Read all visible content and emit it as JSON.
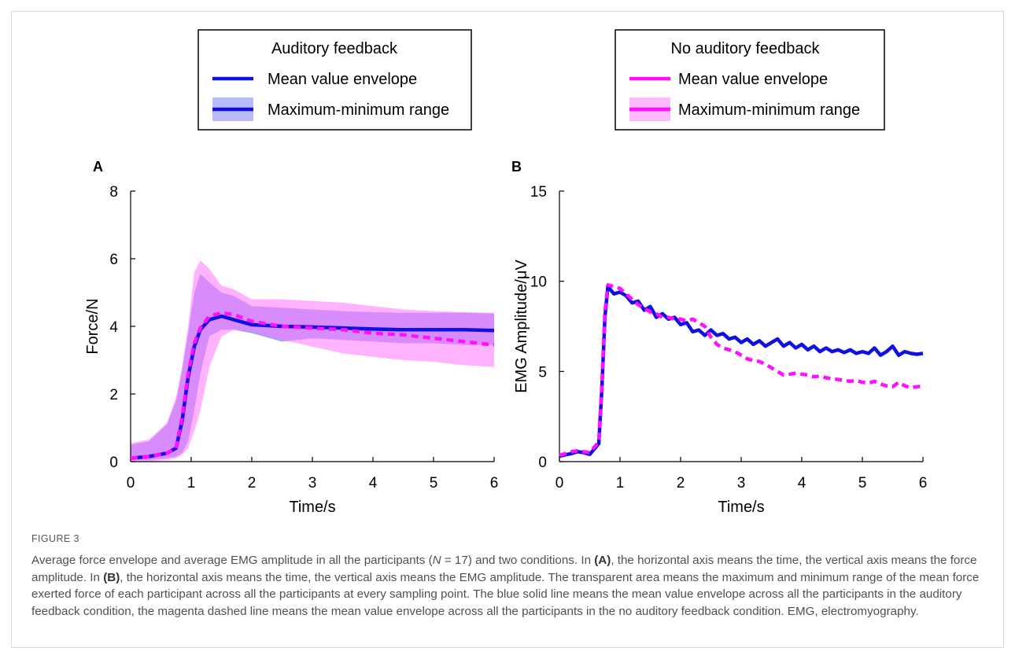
{
  "legend": {
    "left": {
      "title": "Auditory feedback",
      "items": [
        "Mean value envelope",
        "Maximum-minimum range"
      ]
    },
    "right": {
      "title": "No auditory feedback",
      "items": [
        "Mean value envelope",
        "Maximum-minimum range"
      ]
    }
  },
  "colors": {
    "auditory": "#1010e0",
    "auditory_band": "#7f7ff2",
    "no_auditory": "#ff10ff",
    "no_auditory_band": "#ff80ff"
  },
  "chart_data": [
    {
      "type": "line",
      "panel": "A",
      "xlabel": "Time/s",
      "ylabel": "Force/N",
      "xlim": [
        0,
        6
      ],
      "ylim": [
        0,
        8
      ],
      "xticks": [
        "0",
        "1",
        "2",
        "3",
        "4",
        "5",
        "6"
      ],
      "yticks": [
        "0",
        "2",
        "4",
        "6",
        "8"
      ],
      "series": [
        {
          "name": "Auditory feedback",
          "style": "solid",
          "x": [
            0,
            0.3,
            0.6,
            0.75,
            0.85,
            0.95,
            1.05,
            1.15,
            1.3,
            1.5,
            1.7,
            2.0,
            2.5,
            3.0,
            3.5,
            4.0,
            4.5,
            5.0,
            5.5,
            6.0
          ],
          "y": [
            0.1,
            0.15,
            0.25,
            0.4,
            1.2,
            2.5,
            3.4,
            3.9,
            4.2,
            4.3,
            4.2,
            4.05,
            4.0,
            3.98,
            3.95,
            3.92,
            3.9,
            3.9,
            3.9,
            3.88
          ],
          "band_upper": [
            0.5,
            0.6,
            1.1,
            1.8,
            2.7,
            3.8,
            5.0,
            5.55,
            5.3,
            5.0,
            4.9,
            4.6,
            4.55,
            4.5,
            4.45,
            4.42,
            4.4,
            4.4,
            4.4,
            4.38
          ],
          "band_lower": [
            0.05,
            0.05,
            0.1,
            0.15,
            0.25,
            0.6,
            1.5,
            2.6,
            3.7,
            3.9,
            3.9,
            3.8,
            3.55,
            3.65,
            3.6,
            3.55,
            3.5,
            3.5,
            3.45,
            3.45
          ]
        },
        {
          "name": "No auditory feedback",
          "style": "dashed",
          "x": [
            0,
            0.3,
            0.6,
            0.75,
            0.85,
            0.95,
            1.05,
            1.15,
            1.3,
            1.5,
            1.7,
            2.0,
            2.5,
            3.0,
            3.5,
            4.0,
            4.5,
            5.0,
            5.5,
            6.0
          ],
          "y": [
            0.1,
            0.15,
            0.25,
            0.4,
            1.3,
            2.6,
            3.5,
            3.95,
            4.3,
            4.4,
            4.35,
            4.15,
            4.0,
            3.95,
            3.9,
            3.8,
            3.75,
            3.65,
            3.55,
            3.45
          ],
          "band_upper": [
            0.55,
            0.65,
            1.15,
            1.9,
            2.8,
            4.0,
            5.6,
            5.95,
            5.7,
            5.2,
            5.1,
            4.8,
            4.8,
            4.75,
            4.7,
            4.6,
            4.5,
            4.45,
            4.42,
            4.4
          ],
          "band_lower": [
            0.0,
            0.0,
            0.05,
            0.1,
            0.2,
            0.4,
            0.9,
            1.5,
            2.8,
            3.7,
            3.9,
            3.85,
            3.6,
            3.4,
            3.2,
            3.1,
            3.0,
            2.95,
            2.85,
            2.8
          ]
        }
      ]
    },
    {
      "type": "line",
      "panel": "B",
      "xlabel": "Time/s",
      "ylabel": "EMG Amplitude/μV",
      "xlim": [
        0,
        6
      ],
      "ylim": [
        0,
        15
      ],
      "xticks": [
        "0",
        "1",
        "2",
        "3",
        "4",
        "5",
        "6"
      ],
      "yticks": [
        "0",
        "5",
        "10",
        "15"
      ],
      "series": [
        {
          "name": "Auditory feedback",
          "style": "solid",
          "x": [
            0,
            0.2,
            0.3,
            0.4,
            0.5,
            0.6,
            0.65,
            0.7,
            0.75,
            0.8,
            0.9,
            1.0,
            1.1,
            1.2,
            1.3,
            1.4,
            1.5,
            1.6,
            1.7,
            1.8,
            1.9,
            2.0,
            2.1,
            2.2,
            2.3,
            2.4,
            2.5,
            2.6,
            2.7,
            2.8,
            2.9,
            3.0,
            3.1,
            3.2,
            3.3,
            3.4,
            3.5,
            3.6,
            3.7,
            3.8,
            3.9,
            4.0,
            4.1,
            4.2,
            4.3,
            4.4,
            4.5,
            4.6,
            4.7,
            4.8,
            4.9,
            5.0,
            5.1,
            5.2,
            5.3,
            5.4,
            5.5,
            5.6,
            5.7,
            5.8,
            5.9,
            6.0
          ],
          "y": [
            0.3,
            0.45,
            0.55,
            0.5,
            0.4,
            0.8,
            1.0,
            4.0,
            8.0,
            9.7,
            9.3,
            9.4,
            9.2,
            8.8,
            8.9,
            8.4,
            8.6,
            8.0,
            8.2,
            7.9,
            8.0,
            7.6,
            7.7,
            7.2,
            7.3,
            7.0,
            7.3,
            7.0,
            7.1,
            6.8,
            6.9,
            6.6,
            6.8,
            6.5,
            6.7,
            6.4,
            6.6,
            6.8,
            6.4,
            6.6,
            6.3,
            6.5,
            6.2,
            6.4,
            6.1,
            6.3,
            6.1,
            6.2,
            6.05,
            6.2,
            6.0,
            6.1,
            6.0,
            6.3,
            5.9,
            6.1,
            6.4,
            5.9,
            6.1,
            6.0,
            5.95,
            6.0
          ]
        },
        {
          "name": "No auditory feedback",
          "style": "dashed",
          "x": [
            0,
            0.2,
            0.3,
            0.4,
            0.5,
            0.6,
            0.65,
            0.7,
            0.75,
            0.8,
            0.9,
            1.0,
            1.1,
            1.2,
            1.3,
            1.4,
            1.5,
            1.6,
            1.7,
            1.8,
            1.9,
            2.0,
            2.1,
            2.2,
            2.3,
            2.4,
            2.5,
            2.6,
            2.7,
            2.8,
            2.9,
            3.0,
            3.1,
            3.2,
            3.3,
            3.4,
            3.5,
            3.6,
            3.7,
            3.8,
            3.9,
            4.0,
            4.1,
            4.2,
            4.3,
            4.4,
            4.5,
            4.6,
            4.7,
            4.8,
            4.9,
            5.0,
            5.1,
            5.2,
            5.3,
            5.4,
            5.5,
            5.6,
            5.7,
            5.8,
            5.9,
            6.0
          ],
          "y": [
            0.35,
            0.55,
            0.6,
            0.55,
            0.5,
            0.9,
            1.1,
            4.2,
            8.3,
            9.8,
            9.7,
            9.6,
            9.3,
            9.0,
            8.7,
            8.5,
            8.3,
            8.2,
            8.0,
            8.0,
            7.9,
            7.9,
            7.8,
            7.9,
            7.7,
            7.5,
            6.9,
            6.5,
            6.3,
            6.2,
            6.1,
            5.9,
            5.7,
            5.6,
            5.55,
            5.4,
            5.2,
            5.0,
            4.8,
            4.85,
            4.9,
            4.85,
            4.8,
            4.7,
            4.75,
            4.65,
            4.6,
            4.55,
            4.5,
            4.45,
            4.5,
            4.4,
            4.35,
            4.45,
            4.3,
            4.2,
            4.15,
            4.4,
            4.2,
            4.1,
            4.15,
            4.2
          ]
        }
      ]
    }
  ],
  "caption": {
    "label": "FIGURE 3",
    "parts": [
      {
        "t": "Average force envelope and average EMG amplitude in all the participants ("
      },
      {
        "t": "N",
        "i": true
      },
      {
        "t": " = 17) and two conditions. In "
      },
      {
        "t": "(A)",
        "b": true
      },
      {
        "t": ", the horizontal axis means the time, the vertical axis means the force amplitude. In "
      },
      {
        "t": "(B)",
        "b": true
      },
      {
        "t": ", the horizontal axis means the time, the vertical axis means the EMG amplitude. The transparent area means the maximum and minimum range of the mean force exerted force of each participant across all the participants at every sampling point. The blue solid line means the mean value envelope across all the participants in the auditory feedback condition, the magenta dashed line means the mean value envelope across all the participants in the no auditory feedback condition. EMG, electromyography."
      }
    ]
  }
}
